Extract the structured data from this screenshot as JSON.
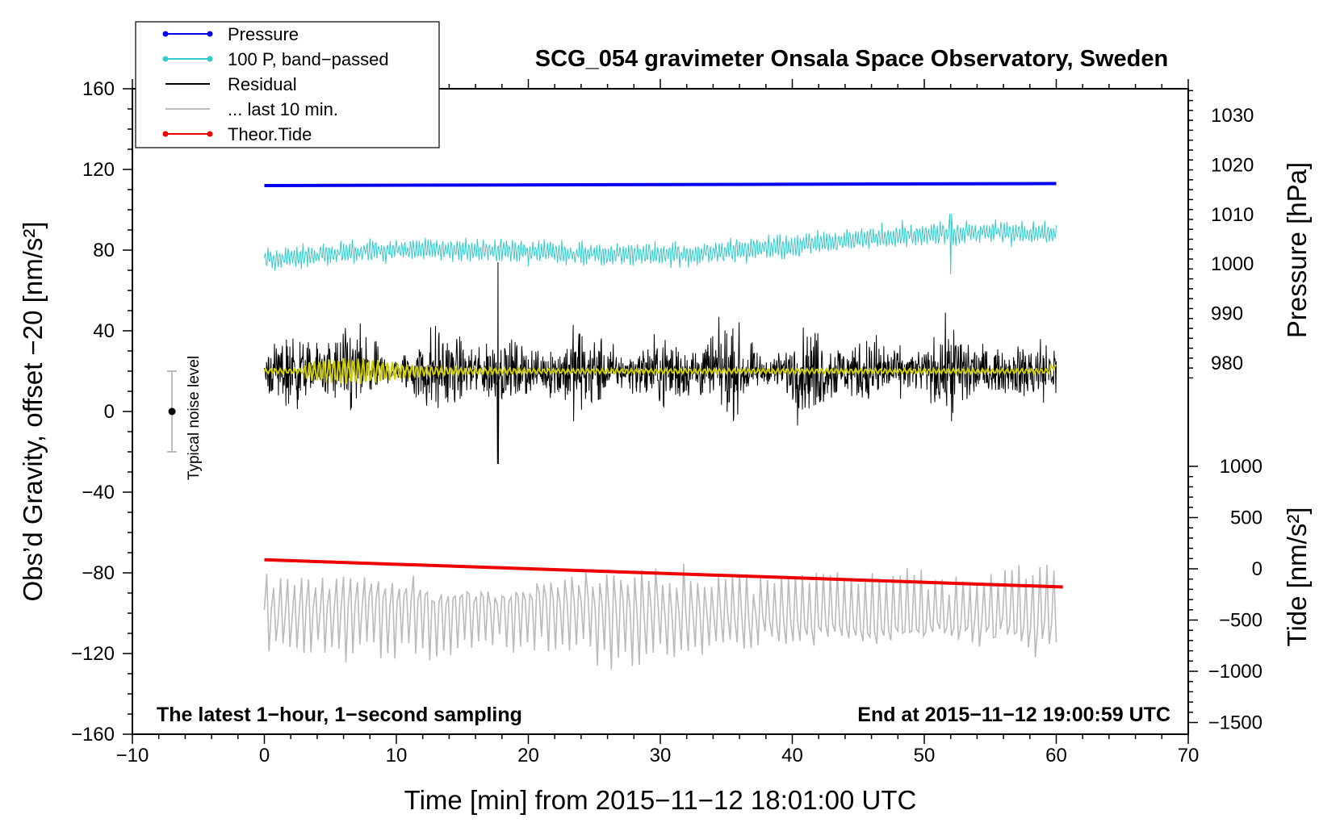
{
  "chart_data": {
    "type": "line",
    "title": "SCG_054 gravimeter Onsala Space Observatory, Sweden",
    "xlabel": "Time [min] from 2015−11−12 18:01:00 UTC",
    "ylabel": "Obs’d Gravity, offset −20 [nm/s²]",
    "ylabel_right_pressure": "Pressure [hPa]",
    "ylabel_right_tide": "Tide [nm/s²]",
    "xlim": [
      -10,
      70
    ],
    "ylim": [
      -160,
      160
    ],
    "x_ticks": [
      -10,
      0,
      10,
      20,
      30,
      40,
      50,
      60,
      70
    ],
    "x_tick_labels": [
      "−10",
      "0",
      "10",
      "20",
      "30",
      "40",
      "50",
      "60",
      "70"
    ],
    "y_ticks": [
      -160,
      -120,
      -80,
      -40,
      0,
      40,
      80,
      120,
      160
    ],
    "y_tick_labels": [
      "−160",
      "−120",
      "−80",
      "−40",
      "0",
      "40",
      "80",
      "120",
      "160"
    ],
    "pressure_ticks": [
      980,
      990,
      1000,
      1010,
      1020,
      1030
    ],
    "pressure_tick_labels": [
      "980",
      "990",
      "1000",
      "1010",
      "1020",
      "1030"
    ],
    "tide_ticks": [
      1000,
      500,
      0,
      -500,
      -1000,
      -1500
    ],
    "tide_tick_labels": [
      "1000",
      "500",
      "0",
      "−500",
      "−1000",
      "−1500"
    ],
    "grid": false,
    "legend_position": "top-left",
    "legend": [
      {
        "label": "Pressure",
        "color": "#0000ee",
        "marker": true
      },
      {
        "label": "100 P, band−passed",
        "color": "#33cccc",
        "marker": true
      },
      {
        "label": "Residual",
        "color": "#000000",
        "marker": false
      },
      {
        "label": "... last 10 min.",
        "color": "#bbbbbb",
        "marker": false
      },
      {
        "label": "Theor.Tide",
        "color": "#ee0000",
        "marker": true
      }
    ],
    "annotations": {
      "bottom_left": "The latest 1−hour, 1−second sampling",
      "bottom_right": "End at 2015−11−12 19:00:59 UTC",
      "noise": "Typical noise level"
    },
    "noise_bar": {
      "x": -7,
      "center": 0,
      "low": -20,
      "high": 20
    },
    "series": [
      {
        "name": "Pressure",
        "color": "#0000ee",
        "x_range": [
          0,
          60
        ],
        "approx_level_plot": [
          112,
          113
        ],
        "pressure_hPa": [
          1016.5,
          1016.8
        ]
      },
      {
        "name": "100 P, band-passed",
        "color": "#33cccc",
        "x_range": [
          0,
          60
        ],
        "mean_trend": [
          75,
          87
        ],
        "amplitude": 6
      },
      {
        "name": "Residual",
        "color": "#000000",
        "x_range": [
          0,
          60
        ],
        "mean": 20,
        "amplitude": 18
      },
      {
        "name": "Residual smoothed",
        "color": "#cccc00",
        "x_range": [
          0,
          60
        ],
        "mean": 20
      },
      {
        "name": "Theor.Tide",
        "color": "#ee0000",
        "x_range": [
          0,
          60.5
        ],
        "values_plot": [
          -73.5,
          -87
        ]
      },
      {
        "name": "... last 10 min.",
        "color": "#bbbbbb",
        "x_range": [
          0,
          60
        ],
        "mean": -100,
        "amplitude": 20
      }
    ]
  }
}
